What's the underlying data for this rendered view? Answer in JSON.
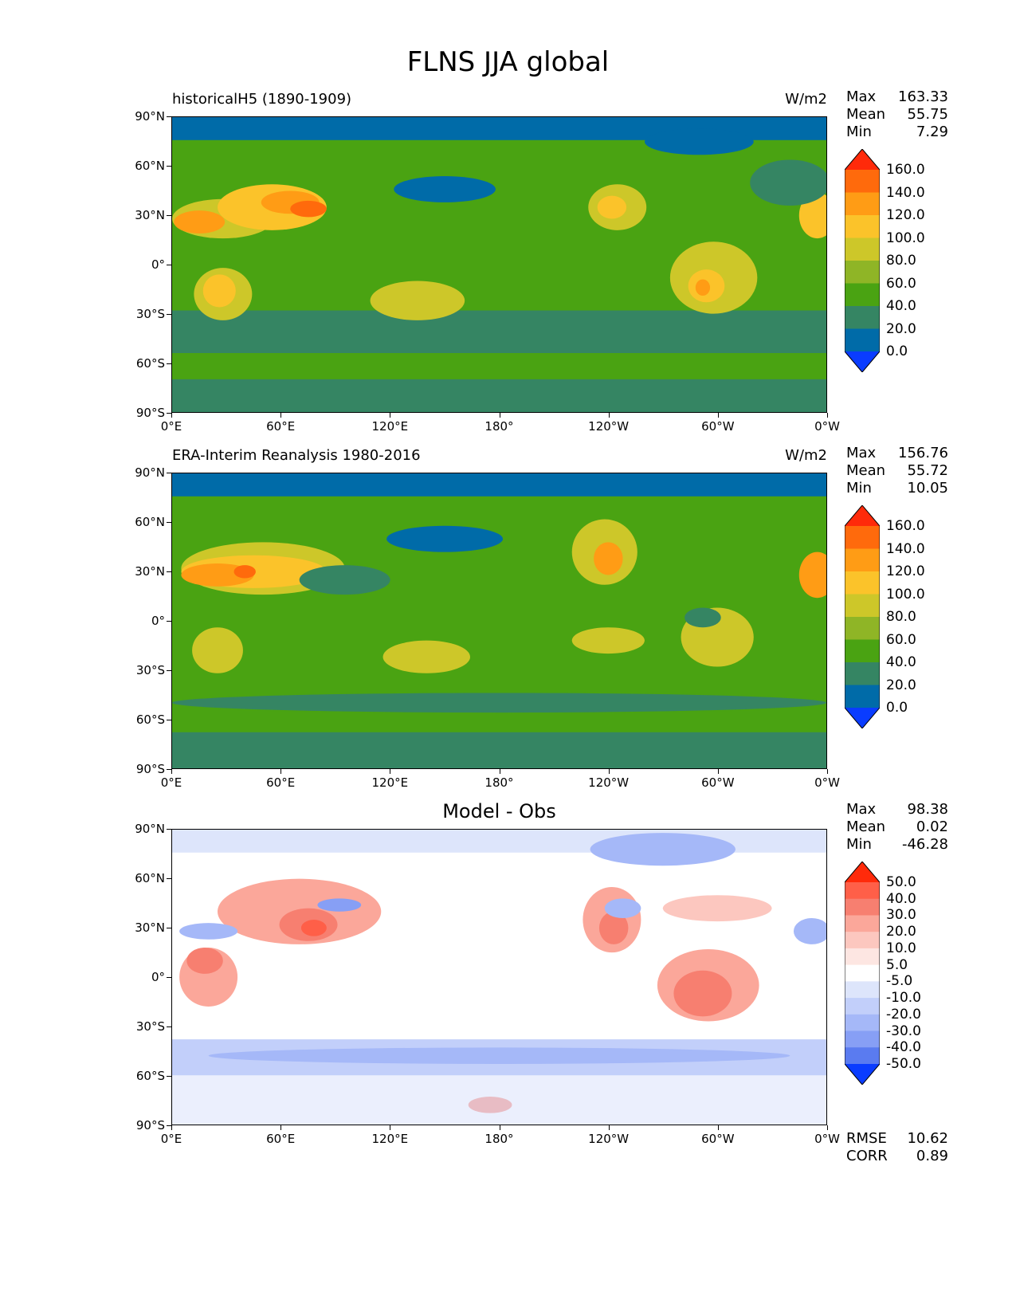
{
  "figure_title": "FLNS JJA global",
  "panels": [
    {
      "title": "historicalH5 (1890-1909)",
      "units": "W/m2",
      "stats": {
        "max_label": "Max",
        "max": "163.33",
        "mean_label": "Mean",
        "mean": "55.75",
        "min_label": "Min",
        "min": "7.29"
      }
    },
    {
      "title": "ERA-Interim Reanalysis 1980-2016",
      "units": "W/m2",
      "stats": {
        "max_label": "Max",
        "max": "156.76",
        "mean_label": "Mean",
        "mean": "55.72",
        "min_label": "Min",
        "min": "10.05"
      }
    },
    {
      "title": "Model - Obs",
      "units": "",
      "stats": {
        "max_label": "Max",
        "max": "98.38",
        "mean_label": "Mean",
        "mean": "0.02",
        "min_label": "Min",
        "min": "-46.28"
      },
      "rmse_label": "RMSE",
      "rmse": "10.62",
      "corr_label": "CORR",
      "corr": "0.89"
    }
  ],
  "lat_labels": [
    "90°N",
    "60°N",
    "30°N",
    "0°",
    "30°S",
    "60°S",
    "90°S"
  ],
  "lon_labels": [
    "0°E",
    "60°E",
    "120°E",
    "180°",
    "120°W",
    "60°W",
    "0°W"
  ],
  "colorbar_field": {
    "labels": [
      "160.0",
      "140.0",
      "120.0",
      "100.0",
      "80.0",
      "60.0",
      "40.0",
      "20.0",
      "0.0"
    ],
    "colors": [
      "#ff2a0a",
      "#ff6a0c",
      "#ff9c15",
      "#fbc32a",
      "#cdc729",
      "#8fb526",
      "#4aa312",
      "#358563",
      "#006ba8",
      "#0a3cff"
    ]
  },
  "colorbar_diff": {
    "labels": [
      "50.0",
      "40.0",
      "30.0",
      "20.0",
      "10.0",
      "5.0",
      "-5.0",
      "-10.0",
      "-20.0",
      "-30.0",
      "-40.0",
      "-50.0"
    ],
    "colors": [
      "#ff2a0a",
      "#ff5f48",
      "#f77f70",
      "#fba79a",
      "#fcc7bf",
      "#fde6e2",
      "#ffffff",
      "#dde5fb",
      "#c2cffa",
      "#a5b8f8",
      "#879ff5",
      "#5a7bf0",
      "#0a3cff"
    ]
  }
}
